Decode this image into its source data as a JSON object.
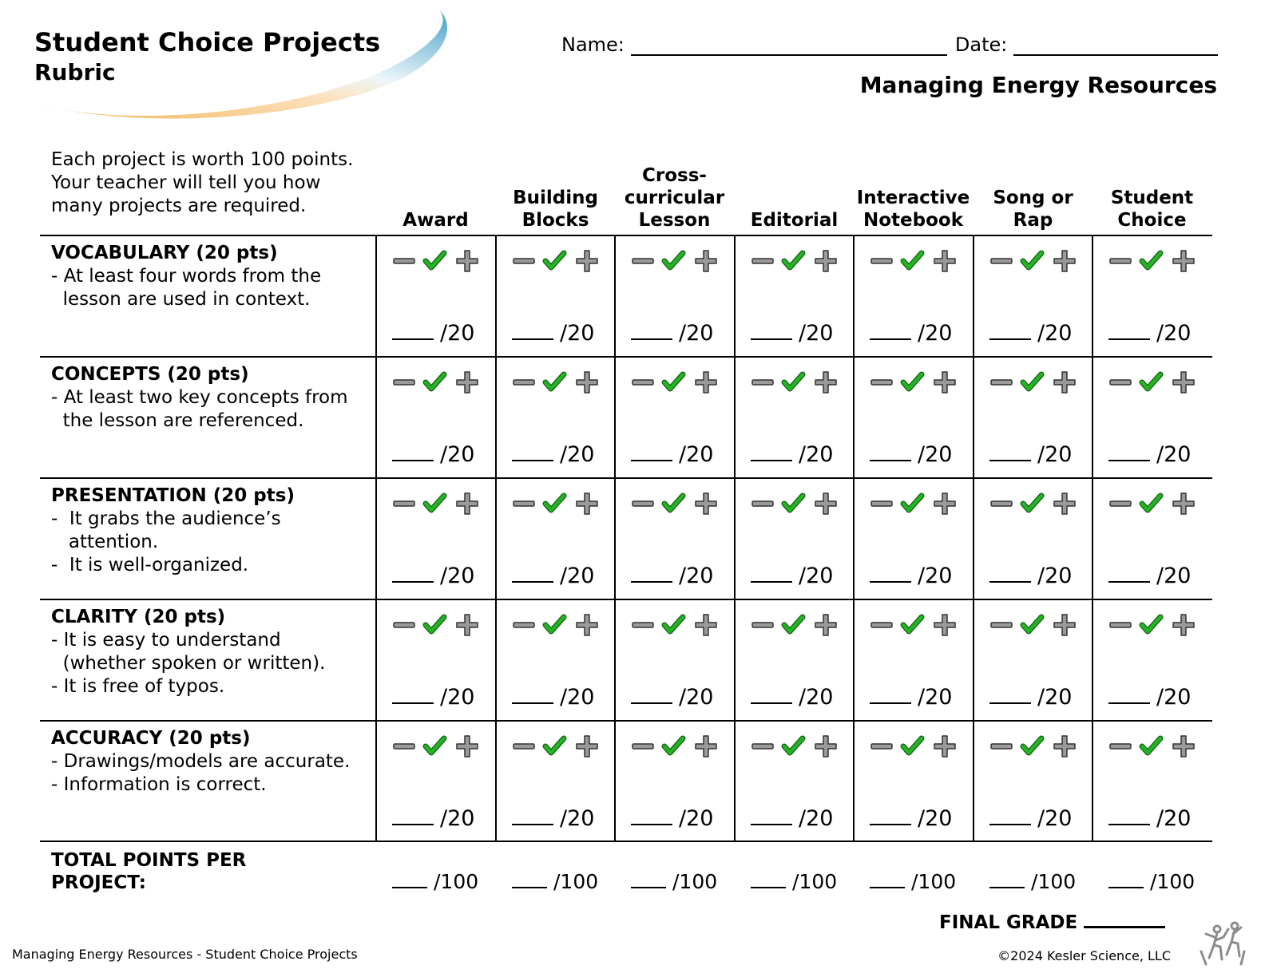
{
  "header": {
    "title": "Student Choice Projects",
    "subtitle": "Rubric",
    "name_label": "Name:",
    "date_label": "Date:",
    "unit_title": "Managing Energy Resources"
  },
  "intro": "Each project is worth 100 points. Your teacher will tell you how many projects are required.",
  "columns": [
    "Award",
    "Building Blocks",
    "Cross-curricular Lesson",
    "Editorial",
    "Interactive Notebook",
    "Song or Rap",
    "Student Choice"
  ],
  "column_lines": [
    [
      "Award"
    ],
    [
      "Building",
      "Blocks"
    ],
    [
      "Cross-",
      "curricular",
      "Lesson"
    ],
    [
      "Editorial"
    ],
    [
      "Interactive",
      "Notebook"
    ],
    [
      "Song or",
      "Rap"
    ],
    [
      "Student",
      "Choice"
    ]
  ],
  "criteria": [
    {
      "title": "VOCABULARY (20 pts)",
      "lines": [
        "- At least four words from the",
        "  lesson are used in context."
      ]
    },
    {
      "title": "CONCEPTS (20 pts)",
      "lines": [
        "- At least two key concepts from",
        "  the lesson are referenced."
      ]
    },
    {
      "title": "PRESENTATION (20 pts)",
      "lines": [
        "-  It grabs the audience’s",
        "   attention.",
        "-  It is well-organized."
      ]
    },
    {
      "title": "CLARITY (20 pts)",
      "lines": [
        "- It is easy to understand",
        "  (whether spoken or written).",
        "- It is free of typos."
      ]
    },
    {
      "title": "ACCURACY (20 pts)",
      "lines": [
        "- Drawings/models are accurate.",
        "- Information is correct."
      ]
    }
  ],
  "score_label": "/20",
  "total_label": "TOTAL POINTS PER PROJECT:",
  "total_score_label": "/100",
  "final_grade_label": "FINAL GRADE",
  "footer": {
    "left": "Managing Energy Resources - Student Choice Projects",
    "right": "©2024  Kesler Science, LLC"
  },
  "icons": {
    "minus": "minus-icon",
    "check": "check-icon",
    "plus": "plus-icon",
    "logo": "kesler-science-logo-icon"
  },
  "colors": {
    "check": "#22b422",
    "symbol_gray": "#9a9a9a",
    "swoosh_blue": "#3d9dc4",
    "swoosh_orange": "#f2b45a"
  }
}
